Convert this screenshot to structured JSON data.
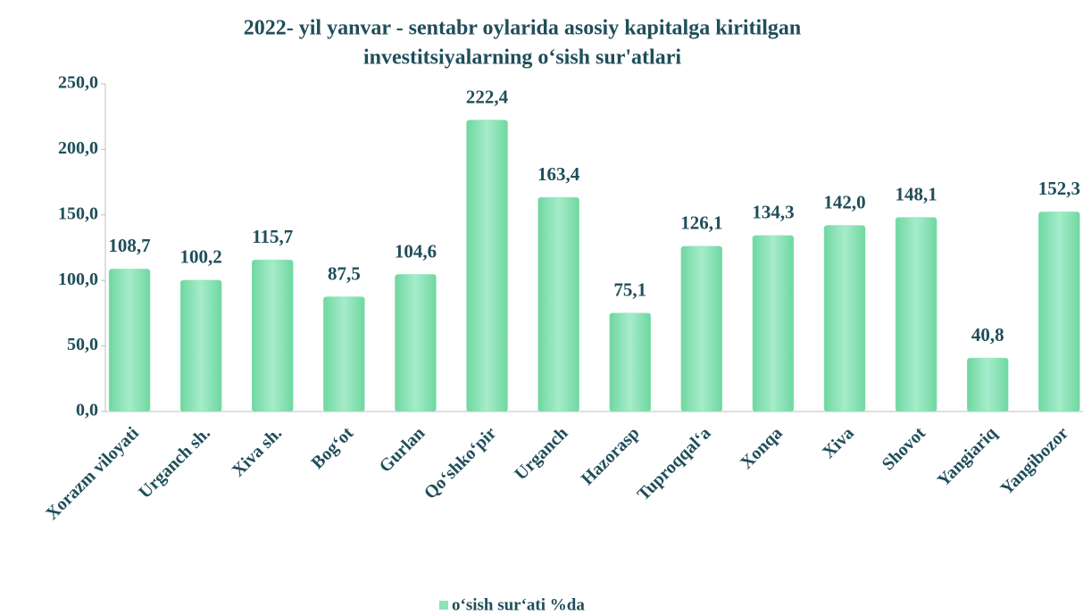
{
  "chart_data": {
    "type": "bar",
    "title": [
      "2022- yil yanvar - sentabr oylarida asosiy kapitalga kiritilgan",
      "investitsiyalarning o‘sish sur'atlari"
    ],
    "categories": [
      "Xorazm viloyati",
      "Urganch sh.",
      "Xiva sh.",
      "Bog‘ot",
      "Gurlan",
      "Qo‘shko‘pir",
      "Urganch",
      "Hazorasp",
      "Tuproqqal‘a",
      "Xonqa",
      "Xiva",
      "Shovot",
      "Yangiariq",
      "Yangibozor"
    ],
    "series": [
      {
        "name": "o‘sish sur‘ati %da",
        "color": "#8ee4b6",
        "values": [
          108.7,
          100.2,
          115.7,
          87.5,
          104.6,
          222.4,
          163.4,
          75.1,
          126.1,
          134.3,
          142.0,
          148.1,
          40.8,
          152.3
        ],
        "value_labels": [
          "108,7",
          "100,2",
          "115,7",
          "87,5",
          "104,6",
          "222,4",
          "163,4",
          "75,1",
          "126,1",
          "134,3",
          "142,0",
          "148,1",
          "40,8",
          "152,3"
        ]
      }
    ],
    "ylim": [
      0,
      250
    ],
    "yticks": [
      {
        "value": 0,
        "label": "0,0"
      },
      {
        "value": 50,
        "label": "50,0"
      },
      {
        "value": 100,
        "label": "100,0"
      },
      {
        "value": 150,
        "label": "150,0"
      },
      {
        "value": 200,
        "label": "200,0"
      },
      {
        "value": 250,
        "label": "250,0"
      }
    ],
    "grid": false,
    "legend": "bottom"
  }
}
